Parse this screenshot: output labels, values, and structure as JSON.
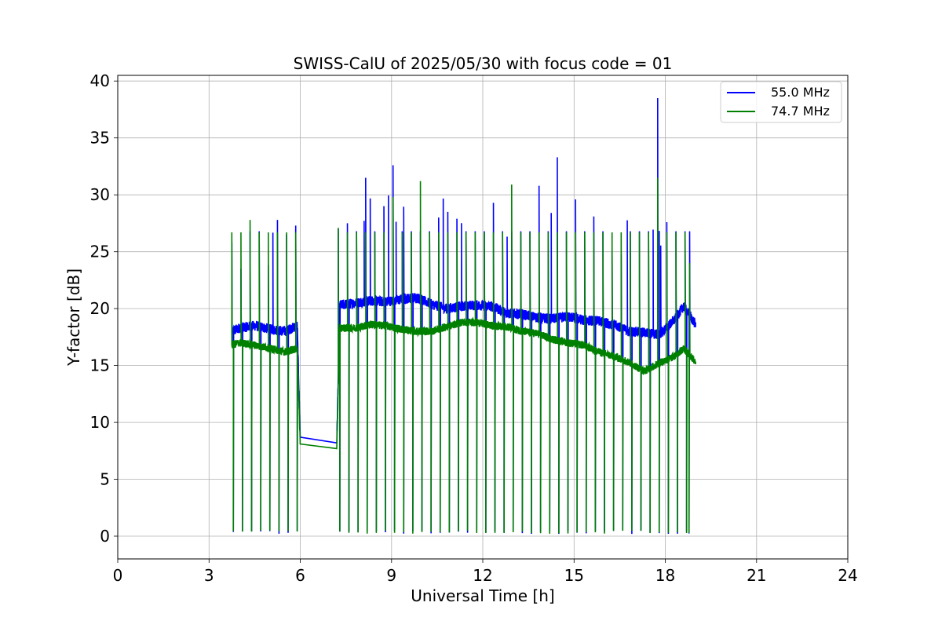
{
  "chart_data": {
    "type": "line",
    "title": "SWISS-CalU of 2025/05/30 with focus code = 01",
    "xlabel": "Universal Time [h]",
    "ylabel": "Y-factor [dB]",
    "xlim": [
      0,
      24
    ],
    "ylim": [
      -2,
      40.5
    ],
    "xticks": [
      0,
      3,
      6,
      9,
      12,
      15,
      18,
      21,
      24
    ],
    "yticks": [
      0,
      5,
      10,
      15,
      20,
      25,
      30,
      35,
      40
    ],
    "grid": true,
    "legend_position": "top-right",
    "spikes": {
      "high_x": [
        3.75,
        4.05,
        4.35,
        4.65,
        4.95,
        5.25,
        5.55,
        5.85,
        7.25,
        7.55,
        7.85,
        8.15,
        8.45,
        8.75,
        9.05,
        9.35,
        9.65,
        9.95,
        10.25,
        10.55,
        10.85,
        11.15,
        11.45,
        11.75,
        12.05,
        12.35,
        12.65,
        12.95,
        13.25,
        13.55,
        13.85,
        14.15,
        14.45,
        14.75,
        15.05,
        15.35,
        15.65,
        15.95,
        16.25,
        16.55,
        16.85,
        17.15,
        17.45,
        17.75,
        18.05,
        18.35,
        18.65,
        18.8
      ],
      "low_x": [
        3.8,
        4.1,
        4.4,
        4.7,
        5.0,
        5.3,
        5.6,
        5.9,
        7.3,
        7.6,
        7.9,
        8.2,
        8.5,
        8.8,
        9.1,
        9.4,
        9.7,
        10.0,
        10.3,
        10.6,
        10.9,
        11.2,
        11.5,
        11.8,
        12.1,
        12.4,
        12.7,
        13.0,
        13.3,
        13.6,
        13.9,
        14.2,
        14.5,
        14.8,
        15.1,
        15.4,
        15.7,
        16.0,
        16.3,
        16.6,
        16.9,
        17.2,
        17.5,
        17.8,
        18.1,
        18.4,
        18.7,
        18.78
      ],
      "extra_peaks_x": [
        5.1,
        8.1,
        8.3,
        8.9,
        9.15,
        9.4,
        10.7,
        11.3,
        12.8,
        14.25,
        14.75,
        15.05,
        16.75,
        17.6,
        17.8,
        17.85
      ]
    },
    "series": [
      {
        "name": "55.0 MHz",
        "color": "#0000ff",
        "baseline": {
          "x": [
            3.75,
            4.0,
            4.5,
            5.0,
            5.5,
            5.9,
            6.0,
            7.2,
            7.3,
            7.8,
            8.3,
            8.8,
            9.3,
            9.8,
            10.3,
            10.8,
            11.3,
            11.8,
            12.3,
            12.8,
            13.3,
            13.8,
            14.3,
            14.8,
            15.3,
            15.8,
            16.3,
            16.8,
            17.3,
            17.8,
            18.3,
            18.6,
            19.0
          ],
          "y": [
            18.0,
            18.3,
            18.5,
            18.2,
            18.0,
            18.5,
            8.7,
            8.2,
            20.3,
            20.5,
            20.7,
            20.6,
            20.8,
            21.0,
            20.4,
            20.0,
            20.2,
            20.3,
            20.2,
            19.6,
            19.5,
            19.2,
            19.1,
            19.3,
            19.0,
            18.9,
            18.6,
            18.0,
            17.9,
            17.7,
            19.0,
            20.2,
            18.6
          ]
        },
        "peak_values": [
          25.8,
          23.5,
          26.8,
          26.8,
          23.8,
          27.8,
          26.5,
          27.3,
          27.0,
          27.5,
          26.8,
          31.5,
          26.8,
          29.0,
          32.6,
          26.8,
          26.8,
          26.8,
          26.8,
          28.0,
          28.5,
          27.9,
          26.8,
          26.8,
          26.8,
          29.3,
          26.8,
          26.8,
          26.8,
          26.8,
          30.8,
          26.8,
          33.3,
          26.8,
          29.6,
          26.8,
          28.1,
          26.8,
          25.0,
          24.8,
          26.8,
          26.8,
          26.8,
          38.5,
          27.6,
          26.8,
          26.8,
          26.8
        ]
      },
      {
        "name": "74.7 MHz",
        "color": "#008000",
        "baseline": {
          "x": [
            3.75,
            4.0,
            4.5,
            5.0,
            5.5,
            5.9,
            6.0,
            7.2,
            7.3,
            7.8,
            8.3,
            8.8,
            9.3,
            9.8,
            10.3,
            10.8,
            11.3,
            11.8,
            12.3,
            12.8,
            13.3,
            13.8,
            14.3,
            14.8,
            15.3,
            15.8,
            16.3,
            16.8,
            17.3,
            17.8,
            18.3,
            18.6,
            19.0
          ],
          "y": [
            16.8,
            17.0,
            16.8,
            16.5,
            16.2,
            16.5,
            8.1,
            7.7,
            18.3,
            18.3,
            18.6,
            18.5,
            18.2,
            18.0,
            18.0,
            18.4,
            18.8,
            18.8,
            18.5,
            18.4,
            18.0,
            17.8,
            17.3,
            17.0,
            16.8,
            16.2,
            15.8,
            15.3,
            14.5,
            15.2,
            15.8,
            16.5,
            15.3
          ]
        },
        "peak_values": [
          26.7,
          26.7,
          27.8,
          26.7,
          26.7,
          26.7,
          26.7,
          26.7,
          27.1,
          26.7,
          26.7,
          26.7,
          26.7,
          26.7,
          29.8,
          26.7,
          26.7,
          31.2,
          26.7,
          26.7,
          26.7,
          26.7,
          26.7,
          26.7,
          26.7,
          26.7,
          26.7,
          30.9,
          26.7,
          26.7,
          26.7,
          26.7,
          26.7,
          26.7,
          26.7,
          26.7,
          26.7,
          26.7,
          26.7,
          26.7,
          26.7,
          26.7,
          26.7,
          31.5,
          26.7,
          26.7,
          26.7,
          24.0
        ]
      }
    ]
  }
}
